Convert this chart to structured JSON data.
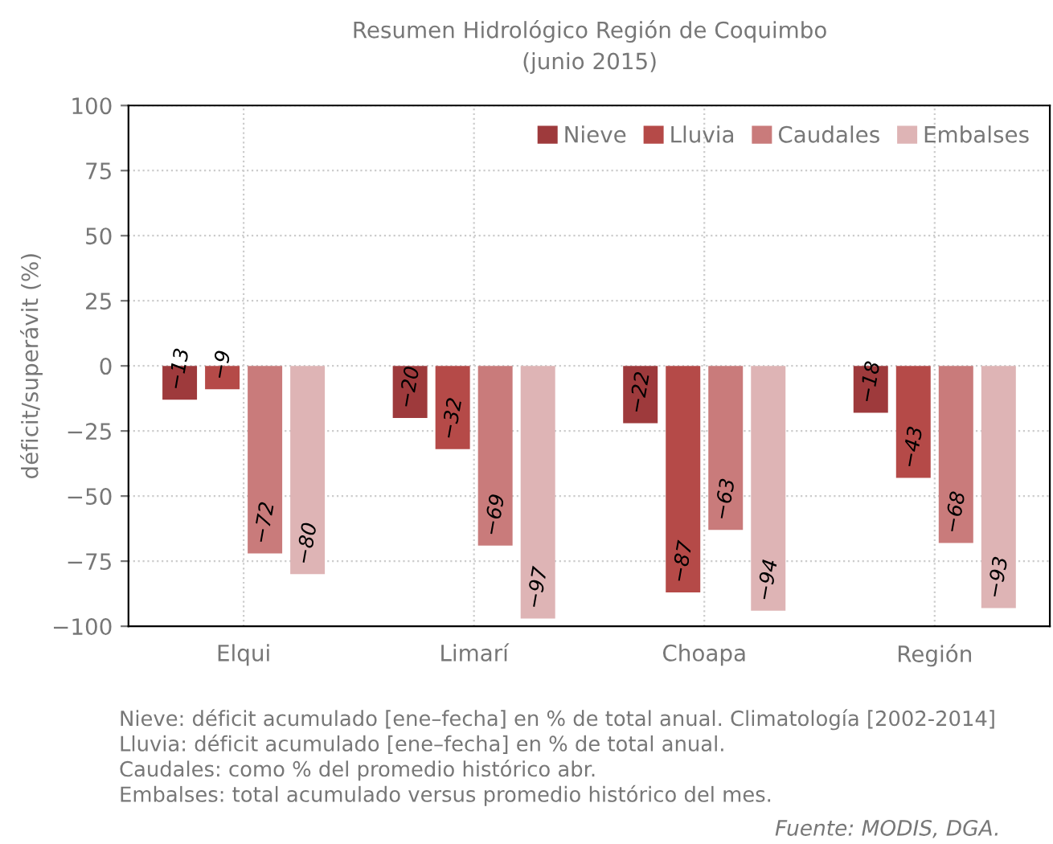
{
  "chart_data": {
    "type": "bar",
    "title": "Resumen Hidrológico Región de Coquimbo",
    "subtitle": "(junio 2015)",
    "ylabel": "déficit/superávit (%)",
    "categories": [
      "Elqui",
      "Limarí",
      "Choapa",
      "Región"
    ],
    "series": [
      {
        "name": "Nieve",
        "color": "#9e3a3c",
        "values": [
          -13,
          -20,
          -22,
          -18
        ]
      },
      {
        "name": "Lluvia",
        "color": "#b54a48",
        "values": [
          -9,
          -32,
          -87,
          -43
        ]
      },
      {
        "name": "Caudales",
        "color": "#c97b7b",
        "values": [
          -72,
          -69,
          -63,
          -68
        ]
      },
      {
        "name": "Embalses",
        "color": "#deb4b5",
        "values": [
          -80,
          -97,
          -94,
          -93
        ]
      }
    ],
    "ylim": [
      -100,
      100
    ],
    "yticks": [
      {
        "value": -100,
        "label": "−100"
      },
      {
        "value": -75,
        "label": "−75"
      },
      {
        "value": -50,
        "label": "−50"
      },
      {
        "value": -25,
        "label": "−25"
      },
      0,
      25,
      50,
      75,
      100
    ],
    "grid": true,
    "legend": "top right",
    "data_labels": true,
    "annotations": [
      "Nieve: déficit acumulado [ene–fecha] en % de total anual. Climatología [2002-2014]",
      "Lluvia: déficit acumulado [ene–fecha] en % de total anual.",
      "Caudales: como % del promedio histórico abr.",
      "Embalses: total acumulado versus promedio histórico del mes.",
      "Fuente: MODIS, DGA."
    ]
  }
}
